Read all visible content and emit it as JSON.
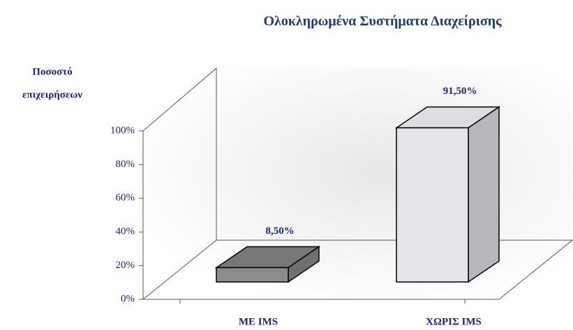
{
  "chart_data": {
    "type": "bar3d",
    "title": "Ολοκληρωμένα Συστήματα Διαχείρισης",
    "y_label": [
      "Ποσοστό",
      "επιχειρήσεων"
    ],
    "categories": [
      "ΜΕ IMS",
      "ΧΩΡΙΣ IMS"
    ],
    "values": [
      8.5,
      91.5
    ],
    "value_labels": [
      "8,50%",
      "91,50%"
    ],
    "colors": [
      "#8c8c8c",
      "#e4e5ea"
    ],
    "ylim": [
      0,
      100
    ],
    "yticks": [
      {
        "value": 0,
        "label": "0%"
      },
      {
        "value": 20,
        "label": "20%"
      },
      {
        "value": 40,
        "label": "40%"
      },
      {
        "value": 60,
        "label": "60%"
      },
      {
        "value": 80,
        "label": "80%"
      },
      {
        "value": 100,
        "label": "100%"
      }
    ]
  }
}
